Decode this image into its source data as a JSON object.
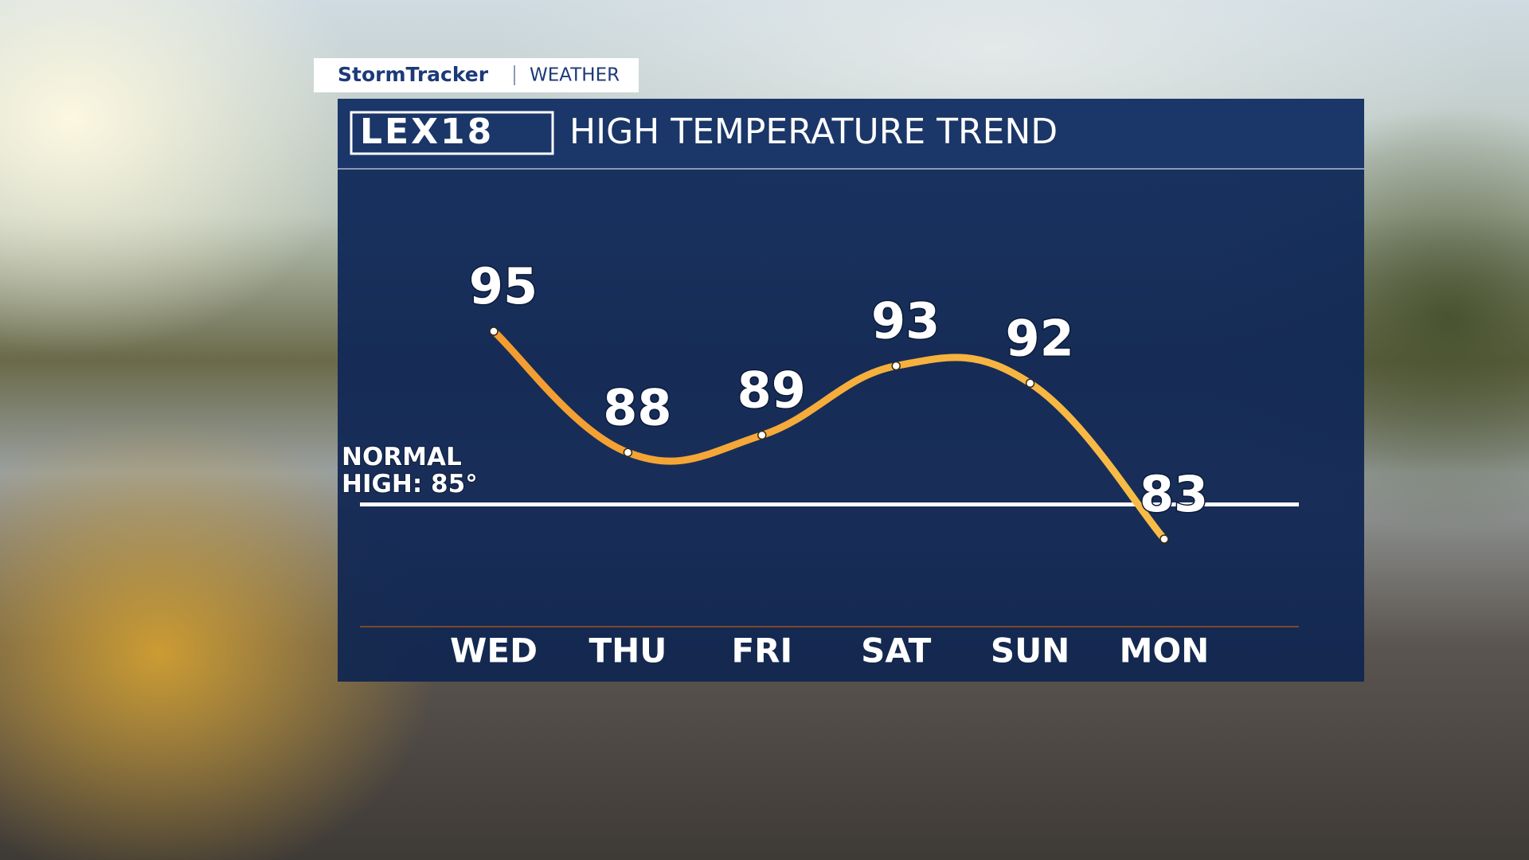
{
  "branding": {
    "brand": "StormTracker",
    "section": "WEATHER",
    "logo": "LEX18"
  },
  "chart_data": {
    "type": "line",
    "title": "HIGH TEMPERATURE TREND",
    "categories": [
      "WED",
      "THU",
      "FRI",
      "SAT",
      "SUN",
      "MON"
    ],
    "values": [
      95,
      88,
      89,
      93,
      92,
      83
    ],
    "color": "#f7b23b",
    "reference_line": {
      "value": 85,
      "label": [
        "NORMAL",
        "HIGH: 85°"
      ]
    }
  }
}
